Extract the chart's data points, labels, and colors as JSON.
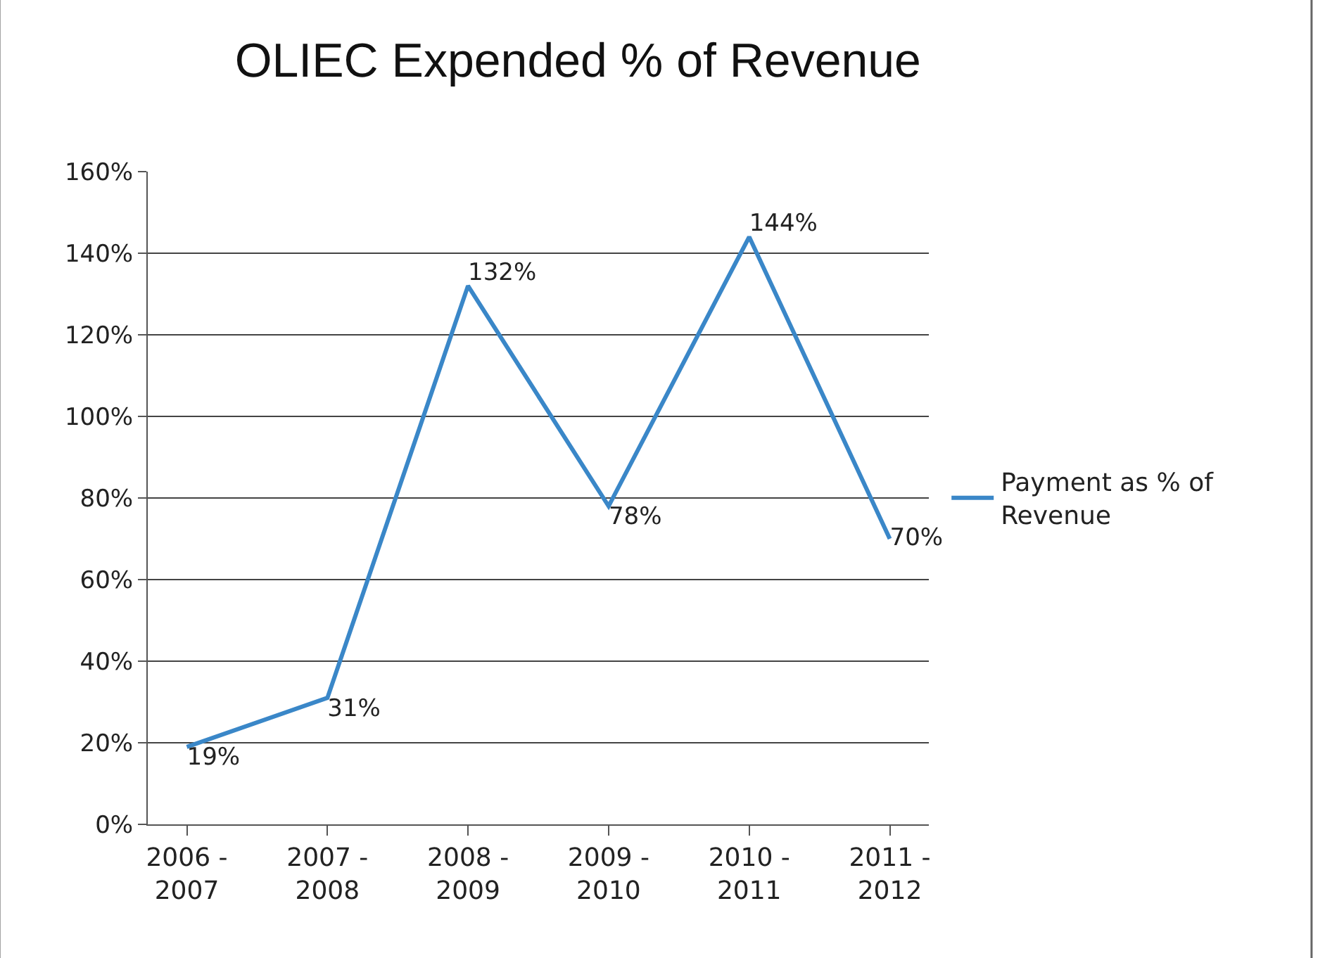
{
  "chart_data": {
    "type": "line",
    "title": "OLIEC Expended % of Revenue",
    "categories": [
      "2006 -\n2007",
      "2007 -\n2008",
      "2008 -\n2009",
      "2009 -\n2010",
      "2010 -\n2011",
      "2011 -\n2012"
    ],
    "series": [
      {
        "name": "Payment as % of\nRevenue",
        "color": "#3a87c8",
        "values": [
          19,
          31,
          132,
          78,
          144,
          70
        ],
        "value_labels": [
          "19%",
          "31%",
          "132%",
          "78%",
          "144%",
          "70%"
        ]
      }
    ],
    "ylim": [
      0,
      160
    ],
    "yticks": [
      {
        "value": 0,
        "label": "0%"
      },
      {
        "value": 20,
        "label": "20%"
      },
      {
        "value": 40,
        "label": "40%"
      },
      {
        "value": 60,
        "label": "60%"
      },
      {
        "value": 80,
        "label": "80%"
      },
      {
        "value": 100,
        "label": "100%"
      },
      {
        "value": 120,
        "label": "120%"
      },
      {
        "value": 140,
        "label": "140%"
      },
      {
        "value": 160,
        "label": "160%"
      }
    ],
    "grid": "y",
    "legend": "right",
    "marker": "none",
    "line_style": "solid"
  }
}
